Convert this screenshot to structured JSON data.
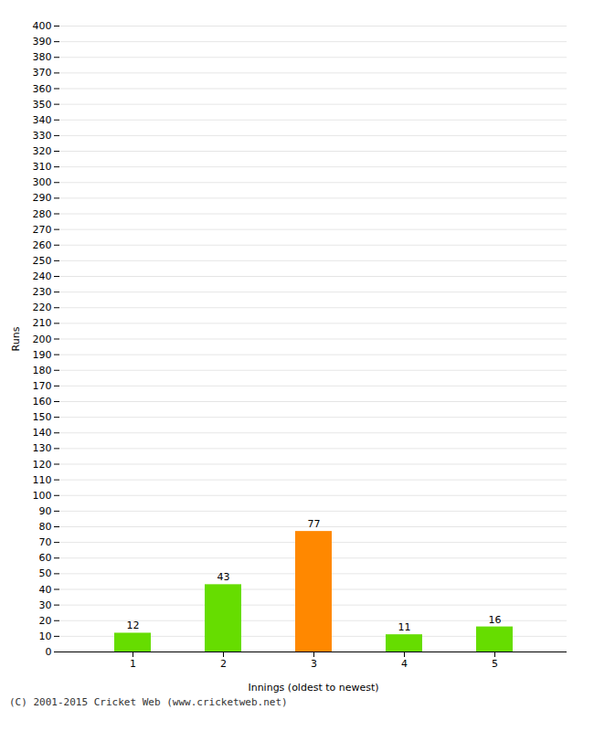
{
  "chart_data": {
    "type": "bar",
    "xlabel": "Innings (oldest to newest)",
    "ylabel": "Runs",
    "categories": [
      "1",
      "2",
      "3",
      "4",
      "5"
    ],
    "values": [
      12,
      43,
      77,
      11,
      16
    ],
    "colors": [
      "#66dd00",
      "#66dd00",
      "#ff8800",
      "#66dd00",
      "#66dd00"
    ],
    "ylim": [
      0,
      400
    ],
    "yticks": [
      0,
      10,
      20,
      30,
      40,
      50,
      60,
      70,
      80,
      90,
      100,
      110,
      120,
      130,
      140,
      150,
      160,
      170,
      180,
      190,
      200,
      210,
      220,
      230,
      240,
      250,
      260,
      270,
      280,
      290,
      300,
      310,
      320,
      330,
      340,
      350,
      360,
      370,
      380,
      390,
      400
    ],
    "grid": true,
    "data_labels": true,
    "annotations": [
      "(C) 2001-2015 Cricket Web (www.cricketweb.net)"
    ]
  }
}
